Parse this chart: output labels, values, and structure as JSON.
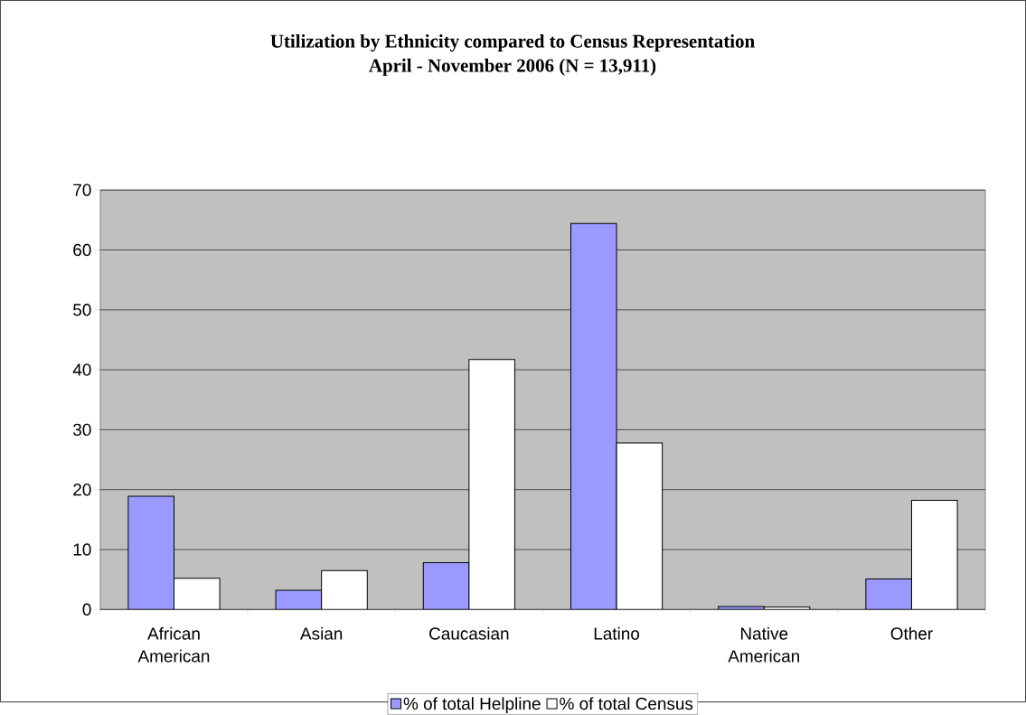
{
  "chart_data": {
    "type": "bar",
    "title": "Utilization by Ethnicity compared to Census Representation",
    "subtitle": "April - November 2006 (N = 13,911)",
    "categories": [
      "African American",
      "Asian",
      "Caucasian",
      "Latino",
      "Native American",
      "Other"
    ],
    "series": [
      {
        "name": "% of total Helpline",
        "color": "#9999ff",
        "values": [
          18.9,
          3.2,
          7.8,
          64.4,
          0.5,
          5.1
        ]
      },
      {
        "name": "% of total Census",
        "color": "#ffffff",
        "values": [
          5.2,
          6.5,
          41.7,
          27.8,
          0.4,
          18.2
        ]
      }
    ],
    "ylim": [
      0,
      70
    ],
    "yticks": [
      0,
      10,
      20,
      30,
      40,
      50,
      60,
      70
    ],
    "grid": "y",
    "legend": "bottom"
  }
}
